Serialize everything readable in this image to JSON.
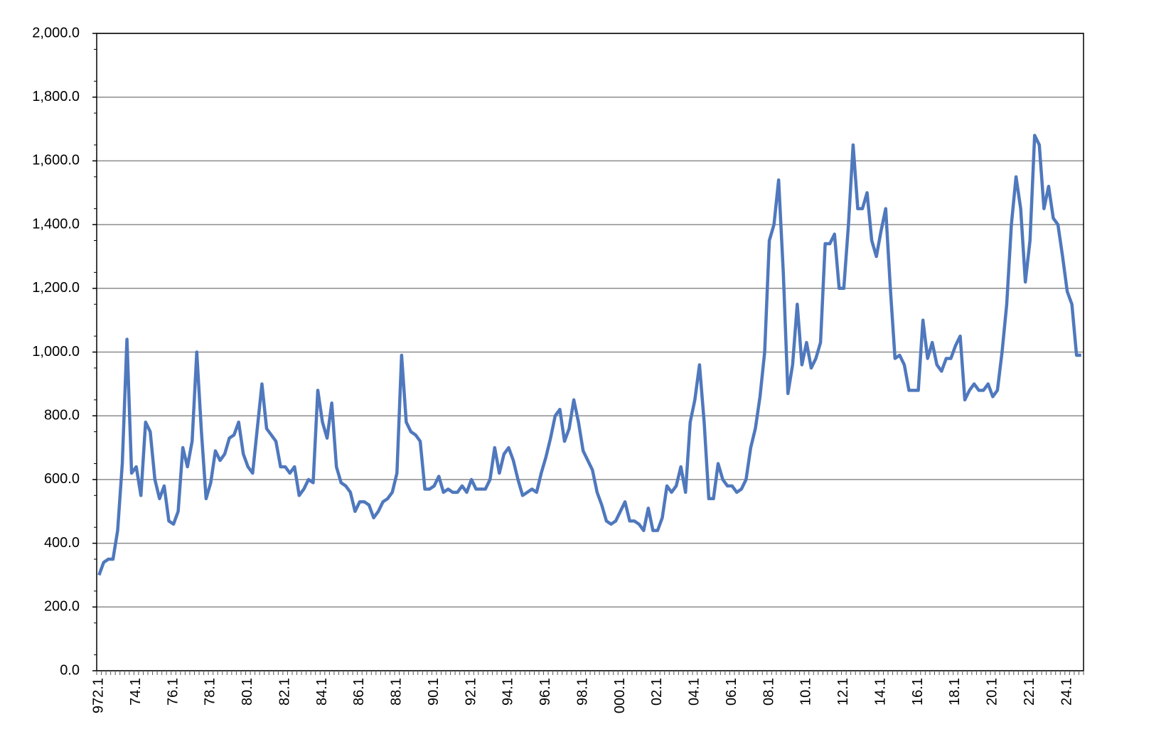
{
  "chart_data": {
    "type": "line",
    "categories": [
      "972.1",
      null,
      null,
      null,
      null,
      null,
      null,
      null,
      "74.1",
      null,
      null,
      null,
      null,
      null,
      null,
      null,
      "76.1",
      null,
      null,
      null,
      null,
      null,
      null,
      null,
      "78.1",
      null,
      null,
      null,
      null,
      null,
      null,
      null,
      "80.1",
      null,
      null,
      null,
      null,
      null,
      null,
      null,
      "82.1",
      null,
      null,
      null,
      null,
      null,
      null,
      null,
      "84.1",
      null,
      null,
      null,
      null,
      null,
      null,
      null,
      "86.1",
      null,
      null,
      null,
      null,
      null,
      null,
      null,
      "88.1",
      null,
      null,
      null,
      null,
      null,
      null,
      null,
      "90.1",
      null,
      null,
      null,
      null,
      null,
      null,
      null,
      "92.1",
      null,
      null,
      null,
      null,
      null,
      null,
      null,
      "94.1",
      null,
      null,
      null,
      null,
      null,
      null,
      null,
      "96.1",
      null,
      null,
      null,
      null,
      null,
      null,
      null,
      "98.1",
      null,
      null,
      null,
      null,
      null,
      null,
      null,
      "000.1",
      null,
      null,
      null,
      null,
      null,
      null,
      null,
      "02.1",
      null,
      null,
      null,
      null,
      null,
      null,
      null,
      "04.1",
      null,
      null,
      null,
      null,
      null,
      null,
      null,
      "06.1",
      null,
      null,
      null,
      null,
      null,
      null,
      null,
      "08.1",
      null,
      null,
      null,
      null,
      null,
      null,
      null,
      "10.1",
      null,
      null,
      null,
      null,
      null,
      null,
      null,
      "12.1",
      null,
      null,
      null,
      null,
      null,
      null,
      null,
      "14.1",
      null,
      null,
      null,
      null,
      null,
      null,
      null,
      "16.1",
      null,
      null,
      null,
      null,
      null,
      null,
      null,
      "18.1",
      null,
      null,
      null,
      null,
      null,
      null,
      null,
      "20.1",
      null,
      null,
      null,
      null,
      null,
      null,
      null,
      "22.1",
      null,
      null,
      null,
      null,
      null,
      null,
      null,
      "24.1",
      null,
      null,
      null
    ],
    "series": [
      {
        "color": "#4f78bd",
        "values": [
          300,
          340,
          350,
          350,
          440,
          650,
          1040,
          620,
          640,
          550,
          780,
          750,
          600,
          540,
          580,
          470,
          460,
          500,
          700,
          640,
          720,
          1000,
          750,
          540,
          590,
          690,
          660,
          680,
          730,
          740,
          780,
          680,
          640,
          620,
          760,
          900,
          760,
          740,
          720,
          640,
          640,
          620,
          640,
          550,
          570,
          600,
          590,
          880,
          780,
          730,
          840,
          640,
          590,
          580,
          560,
          500,
          530,
          530,
          520,
          480,
          500,
          530,
          540,
          560,
          620,
          990,
          780,
          750,
          740,
          720,
          570,
          570,
          580,
          610,
          560,
          570,
          560,
          560,
          580,
          560,
          600,
          570,
          570,
          570,
          600,
          700,
          620,
          680,
          700,
          660,
          600,
          550,
          560,
          570,
          560,
          620,
          670,
          730,
          800,
          820,
          720,
          760,
          850,
          780,
          690,
          660,
          630,
          560,
          520,
          470,
          460,
          470,
          500,
          530,
          470,
          470,
          460,
          440,
          510,
          440,
          440,
          480,
          580,
          560,
          580,
          640,
          560,
          780,
          850,
          960,
          780,
          540,
          540,
          650,
          600,
          580,
          580,
          560,
          570,
          600,
          700,
          760,
          860,
          1000,
          1350,
          1400,
          1540,
          1250,
          870,
          960,
          1150,
          960,
          1030,
          950,
          980,
          1030,
          1340,
          1340,
          1370,
          1200,
          1200,
          1400,
          1650,
          1450,
          1450,
          1500,
          1350,
          1300,
          1380,
          1450,
          1200,
          980,
          990,
          960,
          880,
          880,
          880,
          1100,
          980,
          1030,
          960,
          940,
          980,
          980,
          1020,
          1050,
          850,
          880,
          900,
          880,
          880,
          900,
          860,
          880,
          1000,
          1150,
          1400,
          1550,
          1450,
          1220,
          1350,
          1680,
          1650,
          1450,
          1520,
          1420,
          1400,
          1300,
          1190,
          1150,
          990,
          990
        ]
      }
    ],
    "ylim": [
      0,
      2000
    ],
    "yticks": [
      {
        "value": 0,
        "label": "0.0"
      },
      {
        "value": 200,
        "label": "200.0"
      },
      {
        "value": 400,
        "label": "400.0"
      },
      {
        "value": 600,
        "label": "600.0"
      },
      {
        "value": 800,
        "label": "800.0"
      },
      {
        "value": 1000,
        "label": "1,000.0"
      },
      {
        "value": 1200,
        "label": "1,200.0"
      },
      {
        "value": 1400,
        "label": "1,400.0"
      },
      {
        "value": 1600,
        "label": "1,600.0"
      },
      {
        "value": 1800,
        "label": "1,800.0"
      },
      {
        "value": 2000,
        "label": "2,000.0"
      }
    ],
    "grid": true
  }
}
